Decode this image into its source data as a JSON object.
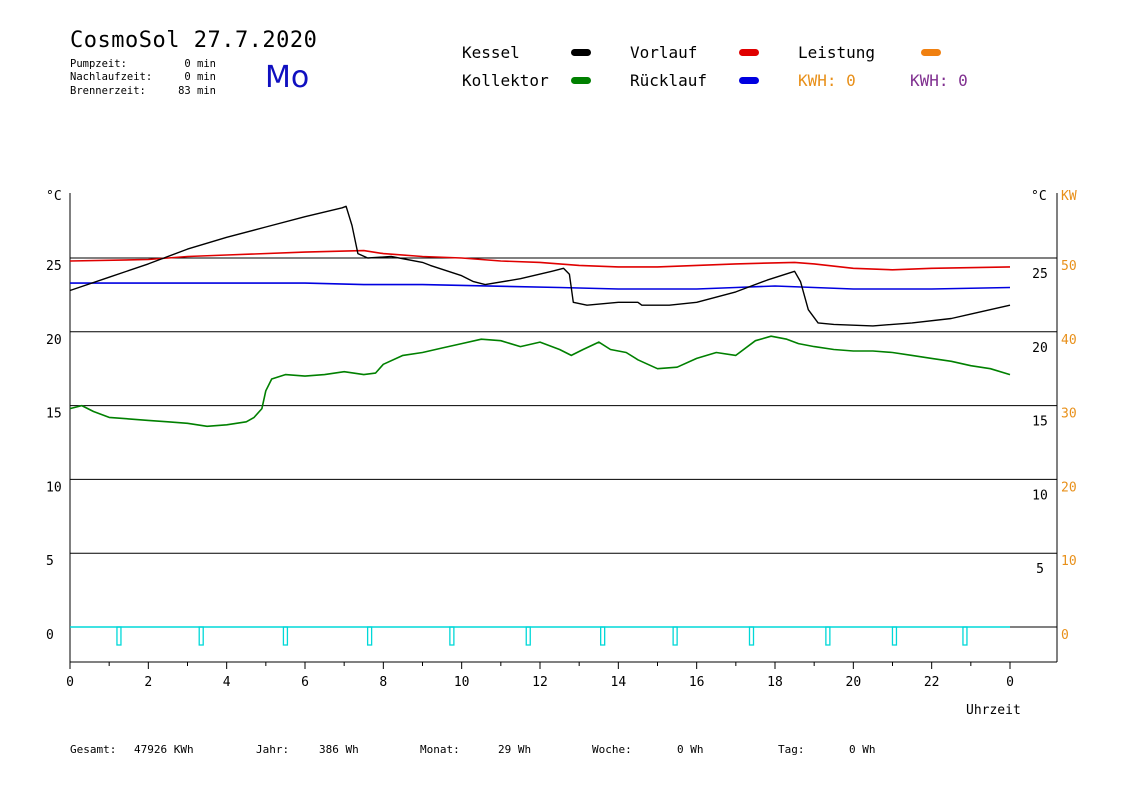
{
  "header": {
    "title": "CosmoSol 27.7.2020",
    "weekday": "Mo",
    "info": [
      {
        "label": "Pumpzeit:",
        "value": "0 min"
      },
      {
        "label": "Nachlaufzeit:",
        "value": "0 min"
      },
      {
        "label": "Brennerzeit:",
        "value": "83 min"
      }
    ]
  },
  "legend": {
    "kessel": {
      "label": "Kessel",
      "color": "#000000"
    },
    "vorlauf": {
      "label": "Vorlauf",
      "color": "#e00000"
    },
    "leistung": {
      "label": "Leistung",
      "color": "#f08010"
    },
    "kollektor": {
      "label": "Kollektor",
      "color": "#008000"
    },
    "ruecklauf": {
      "label": "Rücklauf",
      "color": "#0000e0"
    },
    "kwh_orange": {
      "text": "KWH: 0",
      "color": "#e8901a"
    },
    "kwh_purple": {
      "text": "KWH: 0",
      "color": "#803090"
    }
  },
  "footer": {
    "gesamt": {
      "label": "Gesamt:",
      "value": "47926 KWh"
    },
    "jahr": {
      "label": "Jahr:",
      "value": "386 Wh"
    },
    "monat": {
      "label": "Monat:",
      "value": "29 Wh"
    },
    "woche": {
      "label": "Woche:",
      "value": "0 Wh"
    },
    "tag": {
      "label": "Tag:",
      "value": "0 Wh"
    }
  },
  "chart_data": {
    "type": "line",
    "xlabel": "Uhrzeit",
    "ylabel_left": "°C",
    "ylabel_right_temp": "°C",
    "ylabel_right_power": "KW",
    "xlim": [
      0,
      24
    ],
    "ylim": [
      -2.4,
      30
    ],
    "x_ticks": [
      "0",
      "2",
      "4",
      "6",
      "8",
      "10",
      "12",
      "14",
      "16",
      "18",
      "20",
      "22",
      "0"
    ],
    "y_ticks_left": [
      0,
      5,
      10,
      15,
      20,
      25
    ],
    "y_ticks_right_temp": [
      5,
      10,
      15,
      20,
      25
    ],
    "y_ticks_right_power": [
      0,
      10,
      20,
      30,
      40,
      50
    ],
    "grid": true,
    "series": [
      {
        "key": "kessel",
        "color": "#000000",
        "points": [
          [
            0,
            22.8
          ],
          [
            1,
            23.7
          ],
          [
            2,
            24.6
          ],
          [
            3,
            25.6
          ],
          [
            4,
            26.4
          ],
          [
            5,
            27.1
          ],
          [
            6,
            27.8
          ],
          [
            6.95,
            28.4
          ],
          [
            7.05,
            28.5
          ],
          [
            7.2,
            27.2
          ],
          [
            7.35,
            25.3
          ],
          [
            7.6,
            25.0
          ],
          [
            8.2,
            25.1
          ],
          [
            9.0,
            24.7
          ],
          [
            9.2,
            24.5
          ],
          [
            10.0,
            23.8
          ],
          [
            10.3,
            23.4
          ],
          [
            10.6,
            23.2
          ],
          [
            11.5,
            23.6
          ],
          [
            12.3,
            24.1
          ],
          [
            12.6,
            24.3
          ],
          [
            12.75,
            23.9
          ],
          [
            12.85,
            22.0
          ],
          [
            13.2,
            21.8
          ],
          [
            14.0,
            22.0
          ],
          [
            14.5,
            22.0
          ],
          [
            14.6,
            21.8
          ],
          [
            15.3,
            21.8
          ],
          [
            16.0,
            22.0
          ],
          [
            17.0,
            22.7
          ],
          [
            17.8,
            23.5
          ],
          [
            18.5,
            24.1
          ],
          [
            18.65,
            23.4
          ],
          [
            18.85,
            21.5
          ],
          [
            19.1,
            20.6
          ],
          [
            19.5,
            20.5
          ],
          [
            20.5,
            20.4
          ],
          [
            21.5,
            20.6
          ],
          [
            22.5,
            20.9
          ],
          [
            23.0,
            21.2
          ],
          [
            24.0,
            21.8
          ]
        ]
      },
      {
        "key": "vorlauf",
        "color": "#e00000",
        "points": [
          [
            0,
            24.8
          ],
          [
            2,
            24.9
          ],
          [
            3,
            25.1
          ],
          [
            4,
            25.2
          ],
          [
            6,
            25.4
          ],
          [
            7.5,
            25.5
          ],
          [
            8,
            25.3
          ],
          [
            9,
            25.1
          ],
          [
            10,
            25.0
          ],
          [
            11,
            24.8
          ],
          [
            12,
            24.7
          ],
          [
            13,
            24.5
          ],
          [
            14,
            24.4
          ],
          [
            15,
            24.4
          ],
          [
            16,
            24.5
          ],
          [
            17,
            24.6
          ],
          [
            18.5,
            24.7
          ],
          [
            19,
            24.6
          ],
          [
            20,
            24.3
          ],
          [
            21,
            24.2
          ],
          [
            22,
            24.3
          ],
          [
            24,
            24.4
          ]
        ]
      },
      {
        "key": "ruecklauf",
        "color": "#0000e0",
        "points": [
          [
            0,
            23.3
          ],
          [
            6,
            23.3
          ],
          [
            7.5,
            23.2
          ],
          [
            9,
            23.2
          ],
          [
            12.5,
            23.0
          ],
          [
            14,
            22.9
          ],
          [
            16,
            22.9
          ],
          [
            17,
            23.0
          ],
          [
            18,
            23.1
          ],
          [
            19,
            23.0
          ],
          [
            20,
            22.9
          ],
          [
            22,
            22.9
          ],
          [
            24,
            23.0
          ]
        ]
      },
      {
        "key": "kollektor",
        "color": "#008000",
        "points": [
          [
            0,
            14.8
          ],
          [
            0.3,
            15.0
          ],
          [
            0.6,
            14.6
          ],
          [
            1,
            14.2
          ],
          [
            1.5,
            14.1
          ],
          [
            2,
            14.0
          ],
          [
            2.5,
            13.9
          ],
          [
            3,
            13.8
          ],
          [
            3.5,
            13.6
          ],
          [
            4,
            13.7
          ],
          [
            4.5,
            13.9
          ],
          [
            4.7,
            14.2
          ],
          [
            4.9,
            14.8
          ],
          [
            5.0,
            16.0
          ],
          [
            5.15,
            16.8
          ],
          [
            5.5,
            17.1
          ],
          [
            6,
            17.0
          ],
          [
            6.5,
            17.1
          ],
          [
            7,
            17.3
          ],
          [
            7.5,
            17.1
          ],
          [
            7.8,
            17.2
          ],
          [
            8,
            17.8
          ],
          [
            8.5,
            18.4
          ],
          [
            9,
            18.6
          ],
          [
            9.5,
            18.9
          ],
          [
            10,
            19.2
          ],
          [
            10.5,
            19.5
          ],
          [
            11,
            19.4
          ],
          [
            11.5,
            19.0
          ],
          [
            12,
            19.3
          ],
          [
            12.5,
            18.8
          ],
          [
            12.8,
            18.4
          ],
          [
            13.1,
            18.8
          ],
          [
            13.5,
            19.3
          ],
          [
            13.8,
            18.8
          ],
          [
            14.2,
            18.6
          ],
          [
            14.5,
            18.1
          ],
          [
            15.0,
            17.5
          ],
          [
            15.5,
            17.6
          ],
          [
            16,
            18.2
          ],
          [
            16.5,
            18.6
          ],
          [
            17,
            18.4
          ],
          [
            17.5,
            19.4
          ],
          [
            17.9,
            19.7
          ],
          [
            18.3,
            19.5
          ],
          [
            18.6,
            19.2
          ],
          [
            19,
            19.0
          ],
          [
            19.5,
            18.8
          ],
          [
            20,
            18.7
          ],
          [
            20.5,
            18.7
          ],
          [
            21,
            18.6
          ],
          [
            21.5,
            18.4
          ],
          [
            22,
            18.2
          ],
          [
            22.5,
            18.0
          ],
          [
            23,
            17.7
          ],
          [
            23.5,
            17.5
          ],
          [
            24,
            17.1
          ]
        ]
      }
    ],
    "pump_pulses": [
      1.25,
      3.35,
      5.5,
      7.65,
      9.75,
      11.7,
      13.6,
      15.45,
      17.4,
      19.35,
      21.05,
      22.85
    ]
  }
}
